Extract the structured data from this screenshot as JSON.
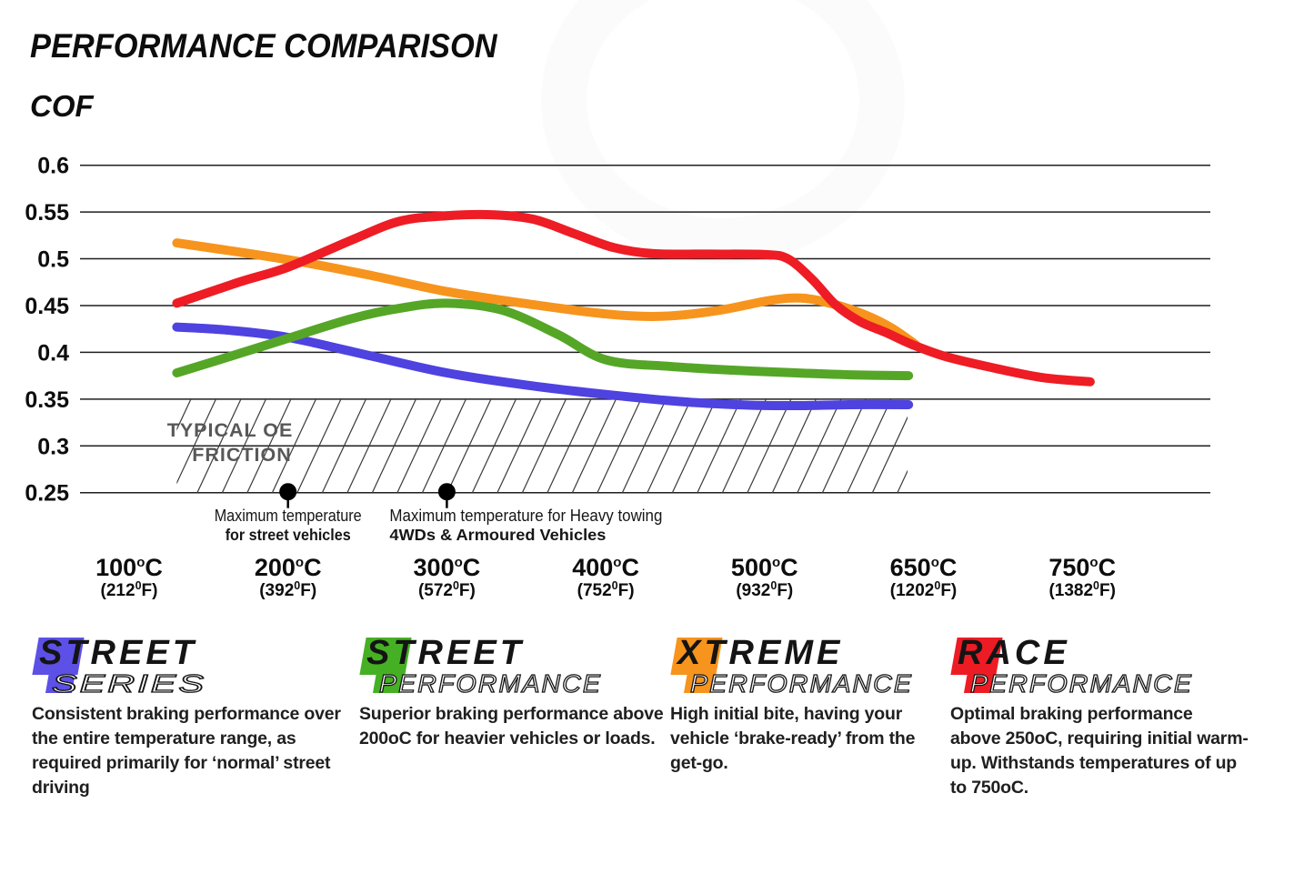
{
  "header": {
    "title": "PERFORMANCE COMPARISON",
    "ylabel": "COF"
  },
  "chart_data": {
    "type": "line",
    "title": "PERFORMANCE COMPARISON",
    "ylabel": "COF",
    "xlabel": "",
    "ylim": [
      0.25,
      0.6
    ],
    "grid": true,
    "yticks": [
      "0.6",
      "0.55",
      "0.5",
      "0.45",
      "0.4",
      "0.35",
      "0.3",
      "0.25"
    ],
    "ytick_values": [
      0.6,
      0.55,
      0.5,
      0.45,
      0.4,
      0.35,
      0.3,
      0.25
    ],
    "x_ticks": [
      {
        "c": "100",
        "f": "212"
      },
      {
        "c": "200",
        "f": "392"
      },
      {
        "c": "300",
        "f": "572"
      },
      {
        "c": "400",
        "f": "752"
      },
      {
        "c": "500",
        "f": "932"
      },
      {
        "c": "650",
        "f": "1202"
      },
      {
        "c": "750",
        "f": "1382"
      }
    ],
    "oe_zone": {
      "label_lines": [
        "TYPICAL OE",
        "FRICTION"
      ],
      "cof_range": [
        0.25,
        0.35
      ],
      "temp_range_c": [
        130,
        635
      ],
      "label_color": "#585858"
    },
    "annotations": [
      {
        "temp_c": 200,
        "align": "center",
        "lines": [
          "Maximum temperature",
          "for street vehicles"
        ],
        "line_lengths": [
          162,
          138
        ]
      },
      {
        "temp_c": 300,
        "align": "left",
        "lines": [
          "Maximum temperature for Heavy towing",
          "4WDs & Armoured Vehicles"
        ],
        "line_lengths": [
          300,
          238
        ]
      }
    ],
    "series": [
      {
        "name": "Street Series",
        "color": "#4E42E0",
        "points": [
          [
            130,
            0.427
          ],
          [
            160,
            0.424
          ],
          [
            200,
            0.416
          ],
          [
            250,
            0.397
          ],
          [
            300,
            0.378
          ],
          [
            350,
            0.365
          ],
          [
            400,
            0.355
          ],
          [
            450,
            0.347
          ],
          [
            490,
            0.3435
          ],
          [
            530,
            0.343
          ],
          [
            580,
            0.344
          ],
          [
            636,
            0.344
          ]
        ]
      },
      {
        "name": "Street Performance",
        "color": "#55A627",
        "points": [
          [
            130,
            0.378
          ],
          [
            170,
            0.399
          ],
          [
            200,
            0.415
          ],
          [
            240,
            0.436
          ],
          [
            270,
            0.447
          ],
          [
            300,
            0.4525
          ],
          [
            335,
            0.445
          ],
          [
            370,
            0.419
          ],
          [
            400,
            0.392
          ],
          [
            440,
            0.385
          ],
          [
            480,
            0.381
          ],
          [
            530,
            0.378
          ],
          [
            580,
            0.376
          ],
          [
            636,
            0.375
          ]
        ]
      },
      {
        "name": "Xtreme Performance",
        "color": "#F7941D",
        "points": [
          [
            130,
            0.517
          ],
          [
            200,
            0.499
          ],
          [
            250,
            0.483
          ],
          [
            300,
            0.465
          ],
          [
            350,
            0.452
          ],
          [
            400,
            0.441
          ],
          [
            435,
            0.4385
          ],
          [
            470,
            0.4445
          ],
          [
            505,
            0.4555
          ],
          [
            535,
            0.458
          ],
          [
            565,
            0.4515
          ],
          [
            595,
            0.44
          ],
          [
            620,
            0.426
          ],
          [
            643,
            0.408
          ]
        ]
      },
      {
        "name": "Race Performance",
        "color": "#EE1C24",
        "points": [
          [
            130,
            0.4525
          ],
          [
            170,
            0.4755
          ],
          [
            200,
            0.491
          ],
          [
            240,
            0.52
          ],
          [
            270,
            0.54
          ],
          [
            300,
            0.546
          ],
          [
            330,
            0.547
          ],
          [
            355,
            0.542
          ],
          [
            380,
            0.527
          ],
          [
            405,
            0.512
          ],
          [
            430,
            0.5055
          ],
          [
            465,
            0.505
          ],
          [
            500,
            0.5045
          ],
          [
            522,
            0.5
          ],
          [
            545,
            0.478
          ],
          [
            567,
            0.451
          ],
          [
            590,
            0.433
          ],
          [
            615,
            0.421
          ],
          [
            640,
            0.408
          ],
          [
            665,
            0.395
          ],
          [
            695,
            0.383
          ],
          [
            725,
            0.373
          ],
          [
            755,
            0.3685
          ]
        ]
      }
    ]
  },
  "legend": [
    {
      "word1": "STREET",
      "word2": "SERIES",
      "color": "#5C50E6",
      "desc_lines": [
        "Consistent braking performance over",
        "the entire temperature range, as",
        "required primarily for ‘normal’ street",
        "driving"
      ]
    },
    {
      "word1": "STREET",
      "word2": "PERFORMANCE",
      "color": "#46B024",
      "desc_lines": [
        "Superior braking performance above",
        "200oC for heavier vehicles or loads."
      ]
    },
    {
      "word1": "XTREME",
      "word2": "PERFORMANCE",
      "color": "#F7941D",
      "desc_lines": [
        "High initial bite, having your",
        "vehicle ‘brake-ready’ from the",
        "get-go."
      ]
    },
    {
      "word1": "RACE",
      "word2": "PERFORMANCE",
      "color": "#ED1C24",
      "desc_lines": [
        "Optimal braking performance",
        "above 250oC, requiring initial warm-",
        "up. Withstands temperatures of up",
        "to 750oC."
      ]
    }
  ]
}
